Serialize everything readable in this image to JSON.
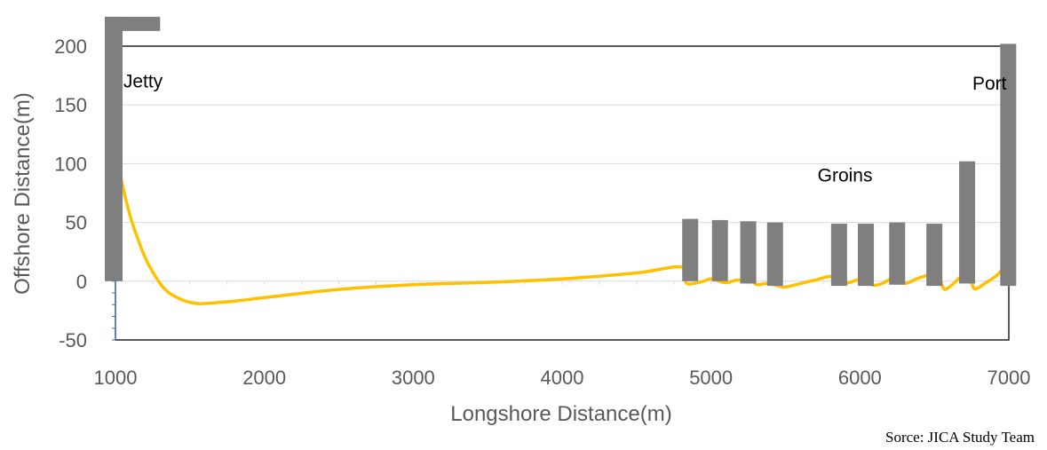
{
  "chart_data": {
    "type": "line",
    "title": "",
    "xlabel": "Longshore Distance(m)",
    "ylabel": "Offshore Distance(m)",
    "xlim": [
      1000,
      7000
    ],
    "ylim": [
      -50,
      200
    ],
    "x_ticks": [
      1000,
      2000,
      3000,
      4000,
      5000,
      6000,
      7000
    ],
    "y_ticks": [
      -50,
      0,
      50,
      100,
      150,
      200
    ],
    "grid": true,
    "legend": "none",
    "series": [
      {
        "color": "#FFC000",
        "x": [
          1000,
          1050,
          1100,
          1150,
          1200,
          1250,
          1300,
          1350,
          1400,
          1450,
          1500,
          1550,
          1600,
          1800,
          2000,
          2500,
          3000,
          3500,
          4000,
          4500,
          4800,
          4830,
          4880,
          4950,
          5000,
          5080,
          5120,
          5180,
          5280,
          5310,
          5380,
          5450,
          5500,
          5600,
          5700,
          5800,
          5850,
          5900,
          5980,
          6050,
          6080,
          6150,
          6220,
          6270,
          6300,
          6380,
          6450,
          6520,
          6560,
          6600,
          6680,
          6730,
          6760,
          6790,
          6850,
          6920,
          6970,
          7000
        ],
        "y": [
          112,
          80,
          55,
          36,
          20,
          8,
          -2,
          -9,
          -13,
          -16,
          -18,
          -19,
          -19,
          -17,
          -14,
          -7,
          -3,
          -1,
          2,
          7,
          12,
          -1,
          -2,
          0,
          2,
          -1,
          -1,
          1,
          -1,
          -3,
          -2,
          -4,
          -5,
          -2,
          1,
          4,
          -1,
          -2,
          1,
          5,
          -3,
          -2,
          3,
          4,
          -2,
          2,
          5,
          8,
          -6,
          -5,
          4,
          9,
          -5,
          -6,
          -1,
          5,
          13,
          22
        ]
      }
    ],
    "structures": [
      {
        "name": "jetty",
        "x": 1000,
        "y0": 0,
        "y1": 225,
        "cap_to_x": 1300
      },
      {
        "name": "groin",
        "x": 4860,
        "y0": 0,
        "y1": 53
      },
      {
        "name": "groin",
        "x": 5060,
        "y0": 0,
        "y1": 52
      },
      {
        "name": "groin",
        "x": 5250,
        "y0": -2,
        "y1": 51
      },
      {
        "name": "groin",
        "x": 5430,
        "y0": -4,
        "y1": 50
      },
      {
        "name": "groin",
        "x": 5860,
        "y0": -4,
        "y1": 49
      },
      {
        "name": "groin",
        "x": 6040,
        "y0": -4,
        "y1": 49
      },
      {
        "name": "groin",
        "x": 6250,
        "y0": -3,
        "y1": 50
      },
      {
        "name": "groin",
        "x": 6500,
        "y0": -4,
        "y1": 49
      },
      {
        "name": "groin",
        "x": 6720,
        "y0": -2,
        "y1": 102
      },
      {
        "name": "port",
        "x": 6990,
        "y0": -4,
        "y1": 202
      }
    ],
    "annotations": [
      {
        "text": "Jetty",
        "x": 1185,
        "y": 165
      },
      {
        "text": "Groins",
        "x": 5900,
        "y": 85
      },
      {
        "text": "Port",
        "x": 6870,
        "y": 163
      }
    ]
  },
  "source": "Sorce: JICA Study Team",
  "colors": {
    "curve": "#FFC000",
    "structure": "#7F7F7F",
    "grid": "#D9D9D9",
    "frame": "#000000",
    "minor_ticks": "#4472C4"
  }
}
